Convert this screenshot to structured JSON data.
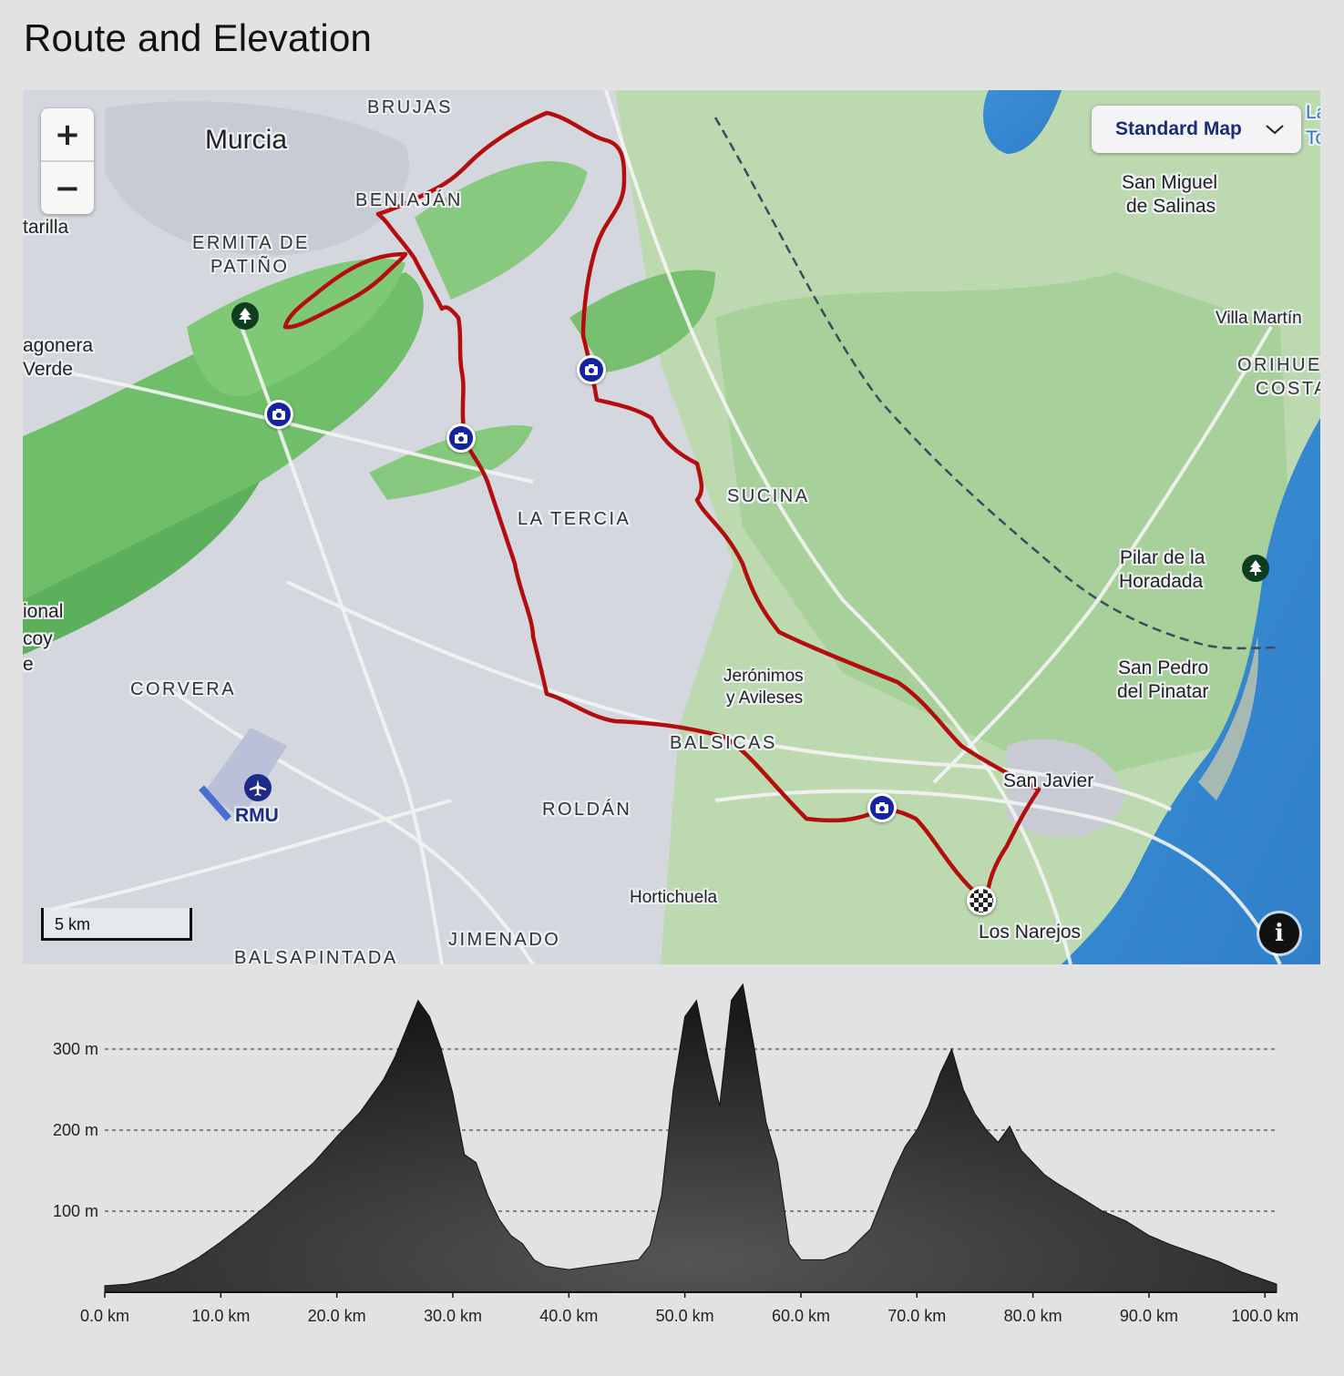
{
  "page": {
    "title": "Route and Elevation"
  },
  "map": {
    "controls": {
      "zoom_in": "+",
      "zoom_out": "−",
      "style_selected": "Standard Map",
      "scale": "5 km",
      "info": "i"
    },
    "labels": {
      "murcia": "Murcia",
      "brujas": "BRUJAS",
      "beniajan": "BENIAJÁN",
      "ermita1": "ERMITA DE",
      "ermita2": "PATIÑO",
      "tarilla": "tarilla",
      "agonera1": "agonera",
      "agonera2": "Verde",
      "ional1": "ional",
      "ional2": "coy",
      "ional3": "e",
      "corvera": "CORVERA",
      "rmu": "RMU",
      "balsapintada": "BALSAPINTADA",
      "jimenado": "JIMENADO",
      "hortichuela": "Hortichuela",
      "roldan": "ROLDÁN",
      "balsicas": "BALSICAS",
      "la_tercia": "LA TERCIA",
      "sucina": "SUCINA",
      "jeronimos1": "Jerónimos",
      "jeronimos2": "y Avileses",
      "san_javier": "San Javier",
      "los_narejos": "Los Narejos",
      "san_miguel1": "San Miguel",
      "san_miguel2": "de Salinas",
      "villa_martin": "Villa Martín",
      "orihuela1": "ORIHUE",
      "orihuela2": "COSTA",
      "pilar1": "Pilar de la",
      "pilar2": "Horadada",
      "san_pedro1": "San Pedro",
      "san_pedro2": "del Pinatar",
      "la_t1": "La",
      "la_t2": "To"
    }
  },
  "chart_data": {
    "type": "area",
    "title": "",
    "xlabel": "",
    "ylabel": "",
    "x_ticks": [
      "0.0 km",
      "10.0 km",
      "20.0 km",
      "30.0 km",
      "40.0 km",
      "50.0 km",
      "60.0 km",
      "70.0 km",
      "80.0 km",
      "90.0 km",
      "100.0 km"
    ],
    "y_ticks": [
      "100 m",
      "200 m",
      "300 m"
    ],
    "xlim": [
      0,
      101
    ],
    "ylim": [
      0,
      380
    ],
    "grid": "horizontal dashed",
    "series": [
      {
        "x": [
          0,
          2,
          4,
          6,
          8,
          10,
          12,
          14,
          16,
          18,
          20,
          22,
          24,
          25,
          26,
          27,
          28,
          29,
          30,
          31,
          32,
          33,
          34,
          35,
          36,
          37,
          38,
          40,
          42,
          44,
          46,
          47,
          48,
          49,
          50,
          51,
          52,
          53,
          54,
          55,
          56,
          57,
          58,
          59,
          60,
          62,
          64,
          66,
          68,
          69,
          70,
          71,
          72,
          73,
          74,
          75,
          76,
          77,
          78,
          79,
          80,
          81,
          82,
          84,
          86,
          88,
          90,
          92,
          94,
          96,
          98,
          100,
          101
        ],
        "y": [
          8,
          10,
          16,
          26,
          42,
          62,
          84,
          108,
          134,
          160,
          192,
          222,
          262,
          290,
          325,
          360,
          340,
          300,
          245,
          170,
          160,
          120,
          90,
          70,
          60,
          40,
          32,
          28,
          32,
          36,
          40,
          58,
          120,
          250,
          340,
          360,
          290,
          230,
          360,
          380,
          300,
          210,
          160,
          60,
          40,
          40,
          50,
          78,
          150,
          180,
          200,
          230,
          270,
          300,
          250,
          220,
          200,
          185,
          205,
          175,
          160,
          145,
          135,
          118,
          100,
          88,
          70,
          58,
          48,
          38,
          25,
          15,
          10
        ]
      }
    ]
  }
}
